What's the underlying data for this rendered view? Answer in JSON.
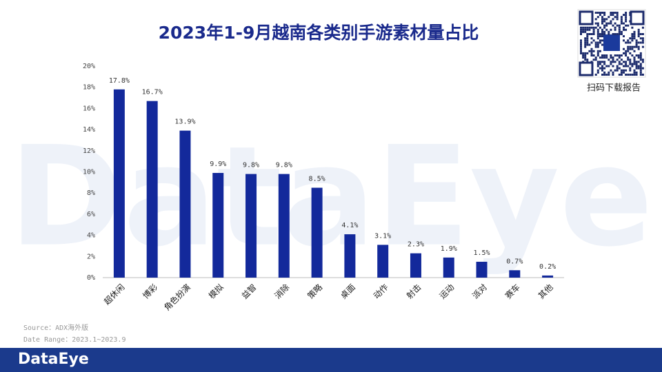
{
  "chart_data": {
    "type": "bar",
    "title": "2023年1-9月越南各类别手游素材量占比",
    "categories": [
      "超休闲",
      "博彩",
      "角色扮演",
      "模拟",
      "益智",
      "消除",
      "策略",
      "桌面",
      "动作",
      "射击",
      "运动",
      "派对",
      "赛车",
      "其他"
    ],
    "values": [
      17.8,
      16.7,
      13.9,
      9.9,
      9.8,
      9.8,
      8.5,
      4.1,
      3.1,
      2.3,
      1.9,
      1.5,
      0.7,
      0.2
    ],
    "value_labels": [
      "17.8%",
      "16.7%",
      "13.9%",
      "9.9%",
      "9.8%",
      "9.8%",
      "8.5%",
      "4.1%",
      "3.1%",
      "2.3%",
      "1.9%",
      "1.5%",
      "0.7%",
      "0.2%"
    ],
    "color": "#13299b",
    "ylim": [
      0,
      20
    ],
    "yticks": [
      {
        "value": 0,
        "label": "0%"
      },
      {
        "value": 2,
        "label": "2%"
      },
      {
        "value": 4,
        "label": "4%"
      },
      {
        "value": 6,
        "label": "6%"
      },
      {
        "value": 8,
        "label": "8%"
      },
      {
        "value": 10,
        "label": "10%"
      },
      {
        "value": 12,
        "label": "12%"
      },
      {
        "value": 14,
        "label": "14%"
      },
      {
        "value": 16,
        "label": "16%"
      },
      {
        "value": 18,
        "label": "18%"
      },
      {
        "value": 20,
        "label": "20%"
      }
    ],
    "grid": false
  },
  "watermark": "DataEye",
  "qr_caption": "扫码下载报告",
  "source": "Source：ADX海外版",
  "date_range": "Date Range：2023.1~2023.9",
  "footer": {
    "logo": "DataEye"
  }
}
